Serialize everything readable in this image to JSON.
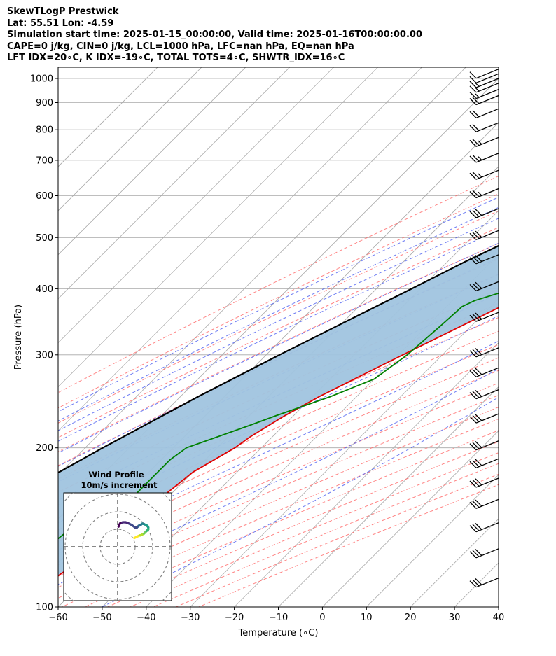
{
  "header": {
    "line1": "SkewTLogP Prestwick",
    "line2": "Lat: 55.51   Lon: -4.59",
    "line3": "Simulation start time: 2025-01-15_00:00:00, Valid time: 2025-01-16T00:00:00.00",
    "line4": "CAPE=0 j/kg, CIN=0 j/kg, LCL=1000 hPa, LFC=nan hPa, EQ=nan hPa",
    "line5": "LFT IDX=20∘C, K IDX=-19∘C, TOTAL TOTS=4∘C, SHWTR_IDX=16∘C"
  },
  "chart_data": {
    "type": "line",
    "xlabel": "Temperature (∘C)",
    "ylabel": "Pressure (hPa)",
    "xlim": [
      -60,
      40
    ],
    "ylim": [
      1050,
      100
    ],
    "y_scale": "log",
    "x_ticks": [
      -60,
      -50,
      -40,
      -30,
      -20,
      -10,
      0,
      10,
      20,
      30,
      40
    ],
    "x_tick_labels": [
      "−60",
      "−50",
      "−40",
      "−30",
      "−20",
      "−10",
      "0",
      "10",
      "20",
      "30",
      "40"
    ],
    "y_ticks": [
      1000,
      900,
      800,
      700,
      600,
      500,
      400,
      300,
      200,
      100
    ],
    "y_tick_labels": [
      "1000",
      "900",
      "800",
      "700",
      "600",
      "500",
      "400",
      "300",
      "200",
      "100"
    ],
    "grid": true,
    "colors": {
      "temperature": "#e00000",
      "dewpoint": "#008000",
      "parcel": "#000000",
      "shade": "#a0c4df",
      "dry_adiabat": "#ff6666",
      "moist_adiabat": "#4a5cf0",
      "mixing_ratio": "#a050d0",
      "isotherm": "#a8a8a8"
    },
    "temperature": {
      "p": [
        1010,
        1000,
        980,
        950,
        920,
        880,
        850,
        800,
        700,
        600,
        500,
        450,
        400,
        300,
        270,
        250,
        230,
        210,
        200,
        180,
        160,
        140,
        130,
        120,
        110,
        100
      ],
      "t": [
        5.5,
        6.5,
        8.5,
        10.5,
        11.8,
        12.3,
        12.0,
        10.2,
        3.2,
        -5.0,
        -13.0,
        -18.0,
        -23.5,
        -39.0,
        -44.5,
        -48.5,
        -52.0,
        -55.0,
        -56.0,
        -60.0,
        -61.5,
        -63.0,
        -63.5,
        -66.0,
        -68.0,
        -70.0
      ]
    },
    "dewpoint": {
      "p": [
        1010,
        1000,
        950,
        880,
        850,
        780,
        740,
        700,
        650,
        600,
        530,
        500,
        450,
        410,
        380,
        370,
        340,
        300,
        270,
        250,
        230,
        220,
        200,
        190,
        180,
        170,
        160,
        150,
        140,
        130,
        120,
        110,
        100
      ],
      "t": [
        5.5,
        1.0,
        -5.0,
        -25.0,
        -32.0,
        -10.0,
        -3.5,
        0.0,
        1.0,
        -1.0,
        -9.0,
        -14.0,
        -21.0,
        -26.0,
        -35.0,
        -36.5,
        -37.0,
        -38.0,
        -40.0,
        -46.0,
        -54.0,
        -58.0,
        -67.0,
        -68.0,
        -68.0,
        -68.0,
        -68.0,
        -71.0,
        -75.0,
        -76.0,
        -76.5,
        -77.0,
        -76.0
      ]
    },
    "parcel": {
      "p": [
        1010,
        1000,
        950,
        900,
        850,
        800,
        750,
        700,
        650,
        600,
        550,
        500,
        450,
        400,
        350,
        300,
        250,
        200,
        150,
        100
      ],
      "t": [
        5.5,
        5.0,
        1.0,
        -3.0,
        -7.0,
        -11.0,
        -15.0,
        -19.5,
        -24.0,
        -29.0,
        -34.5,
        -40.0,
        -46.0,
        -52.0,
        -59.0,
        -67.0,
        -76.0,
        -86.0,
        -98.0,
        -113.0
      ]
    },
    "wind_barbs": {
      "p": [
        1010,
        990,
        970,
        950,
        925,
        900,
        850,
        800,
        750,
        700,
        650,
        600,
        550,
        500,
        450,
        400,
        350,
        300,
        275,
        250,
        225,
        200,
        185,
        170,
        155,
        140,
        125,
        110
      ],
      "speed_kt": [
        10,
        10,
        15,
        15,
        15,
        20,
        20,
        20,
        25,
        25,
        25,
        25,
        30,
        30,
        30,
        30,
        30,
        30,
        30,
        30,
        30,
        30,
        30,
        30,
        30,
        30,
        30,
        30
      ],
      "direction_deg": [
        250,
        255,
        255,
        250,
        250,
        250,
        250,
        255,
        255,
        255,
        255,
        255,
        255,
        255,
        255,
        255,
        255,
        255,
        255,
        255,
        255,
        255,
        255,
        255,
        255,
        255,
        255,
        255
      ]
    },
    "hodograph": {
      "title": "Wind Profile",
      "subtitle": "10m/s increment",
      "u": [
        9.5,
        10.5,
        11.5,
        12.5,
        13.0,
        14.0,
        15.0,
        15.5,
        16.0,
        16.5,
        17.0,
        17.5,
        17.5,
        17.0,
        16.0,
        15.0,
        14.0,
        13.5,
        13.0,
        12.0,
        11.5,
        11.0,
        10.0,
        8.0,
        6.0,
        4.5,
        3.0,
        1.5,
        0.8,
        0.5
      ],
      "v": [
        5.0,
        5.5,
        6.0,
        6.5,
        6.5,
        7.0,
        7.5,
        8.0,
        8.5,
        9.0,
        9.5,
        10.0,
        11.0,
        12.0,
        12.5,
        13.0,
        13.2,
        12.8,
        12.3,
        12.0,
        11.5,
        11.0,
        11.0,
        12.5,
        13.5,
        14.0,
        14.0,
        13.5,
        12.5,
        11.5
      ]
    }
  }
}
